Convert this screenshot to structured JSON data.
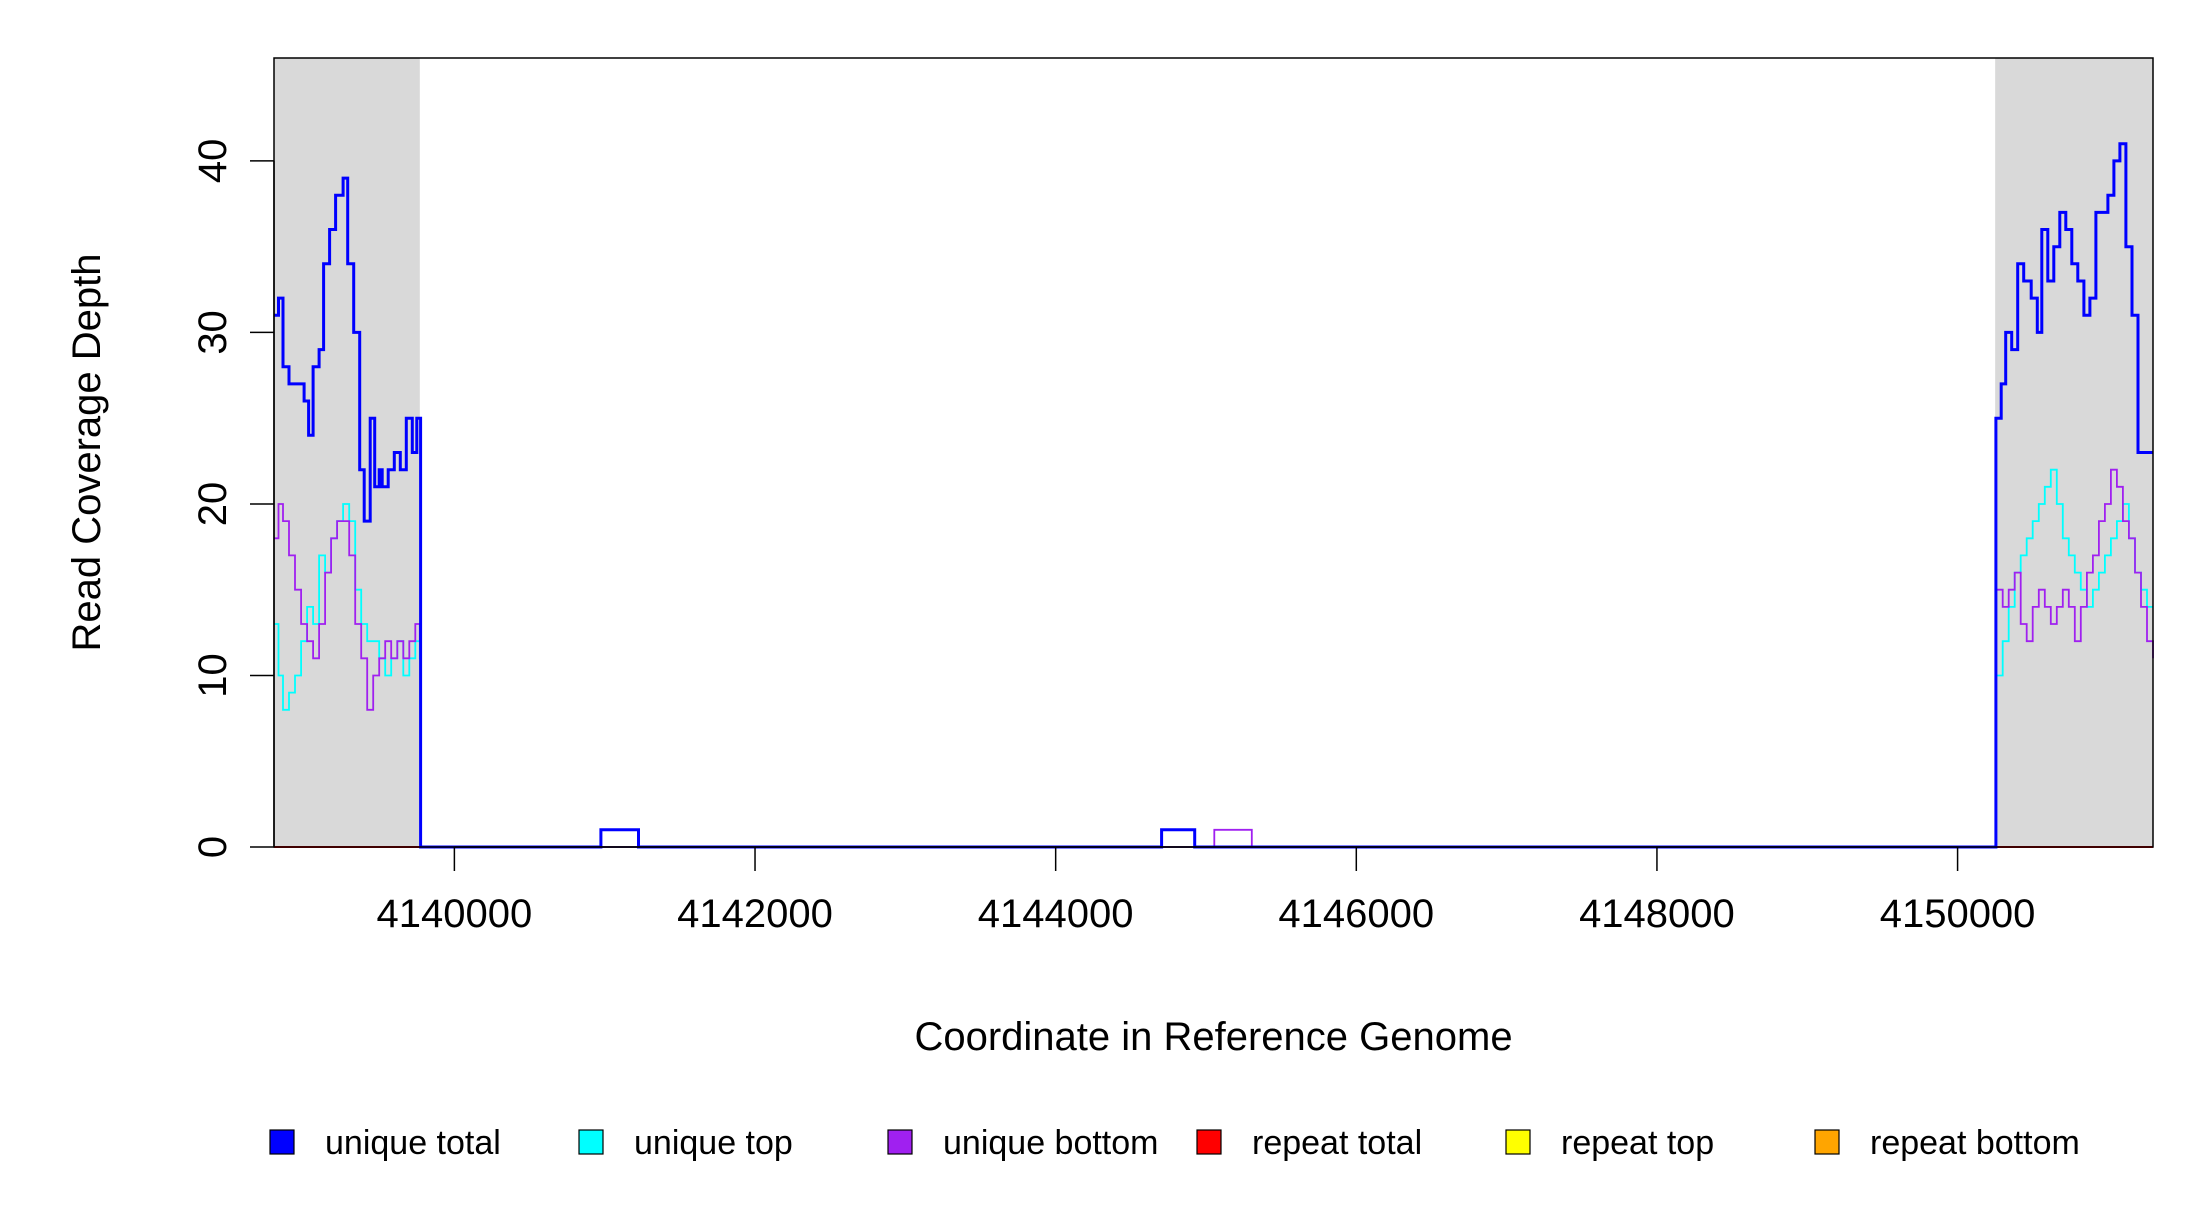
{
  "chart_data": {
    "type": "line",
    "title": "",
    "xlabel": "Coordinate in Reference Genome",
    "ylabel": "Read Coverage Depth",
    "xlim": [
      4138800,
      4151300
    ],
    "ylim": [
      0,
      46
    ],
    "x_ticks": [
      4140000,
      4142000,
      4144000,
      4146000,
      4148000,
      4150000
    ],
    "x_tick_labels": [
      "4140000",
      "4142000",
      "4144000",
      "4146000",
      "4148000",
      "4150000"
    ],
    "y_ticks": [
      0,
      10,
      20,
      30,
      40
    ],
    "y_tick_labels": [
      "0",
      "10",
      "20",
      "30",
      "40"
    ],
    "grid": false,
    "legend_position": "bottom",
    "shaded_regions": [
      {
        "x0": 4138800,
        "x1": 4139770,
        "color": "#d9d9d9"
      },
      {
        "x0": 4150250,
        "x1": 4151300,
        "color": "#d9d9d9"
      }
    ],
    "legend": [
      {
        "label": "unique total",
        "color": "#0000ff"
      },
      {
        "label": "unique top",
        "color": "#00ffff"
      },
      {
        "label": "unique bottom",
        "color": "#a020f0"
      },
      {
        "label": "repeat total",
        "color": "#ff0000"
      },
      {
        "label": "repeat top",
        "color": "#ffff00"
      },
      {
        "label": "repeat bottom",
        "color": "#ffa500"
      }
    ],
    "series": [
      {
        "name": "unique total",
        "color": "#0000ff",
        "x": [
          4138800,
          4138830,
          4138860,
          4138900,
          4138950,
          4139000,
          4139030,
          4139060,
          4139100,
          4139130,
          4139170,
          4139210,
          4139260,
          4139290,
          4139330,
          4139370,
          4139400,
          4139440,
          4139470,
          4139500,
          4139520,
          4139560,
          4139600,
          4139640,
          4139680,
          4139720,
          4139750,
          4139770,
          4139775,
          4140970,
          4140975,
          4141220,
          4141225,
          4144700,
          4144705,
          4144920,
          4144925,
          4150250,
          4150255,
          4150290,
          4150320,
          4150360,
          4150400,
          4150440,
          4150490,
          4150530,
          4150560,
          4150600,
          4150640,
          4150680,
          4150720,
          4150760,
          4150800,
          4150840,
          4150880,
          4150920,
          4150960,
          4151000,
          4151040,
          4151080,
          4151120,
          4151160,
          4151200,
          4151230,
          4151260,
          4151280,
          4151300
        ],
        "y": [
          31,
          32,
          28,
          27,
          27,
          26,
          24,
          28,
          29,
          34,
          36,
          38,
          39,
          34,
          30,
          22,
          19,
          25,
          21,
          22,
          21,
          22,
          23,
          22,
          25,
          23,
          25,
          25,
          0,
          0,
          1,
          1,
          0,
          0,
          1,
          1,
          0,
          0,
          25,
          27,
          30,
          29,
          34,
          33,
          32,
          30,
          36,
          33,
          35,
          37,
          36,
          34,
          33,
          31,
          32,
          37,
          37,
          38,
          40,
          41,
          35,
          31,
          23,
          23,
          23,
          23,
          23
        ]
      },
      {
        "name": "unique top",
        "color": "#00ffff",
        "x": [
          4138800,
          4138830,
          4138860,
          4138900,
          4138940,
          4138980,
          4139020,
          4139060,
          4139100,
          4139140,
          4139180,
          4139220,
          4139260,
          4139300,
          4139340,
          4139380,
          4139420,
          4139460,
          4139500,
          4139540,
          4139580,
          4139620,
          4139660,
          4139700,
          4139740,
          4139770,
          4139775,
          4150250,
          4150255,
          4150300,
          4150340,
          4150380,
          4150420,
          4150460,
          4150500,
          4150540,
          4150580,
          4150620,
          4150660,
          4150700,
          4150740,
          4150780,
          4150820,
          4150860,
          4150900,
          4150940,
          4150980,
          4151020,
          4151060,
          4151100,
          4151140,
          4151180,
          4151220,
          4151260,
          4151300
        ],
        "y": [
          13,
          10,
          8,
          9,
          10,
          12,
          14,
          13,
          17,
          16,
          18,
          19,
          20,
          19,
          15,
          13,
          12,
          12,
          11,
          10,
          11,
          12,
          10,
          11,
          12,
          11,
          0,
          0,
          10,
          12,
          14,
          16,
          17,
          18,
          19,
          20,
          21,
          22,
          20,
          18,
          17,
          16,
          15,
          14,
          15,
          16,
          17,
          18,
          19,
          20,
          18,
          16,
          15,
          14,
          14
        ]
      },
      {
        "name": "unique bottom",
        "color": "#a020f0",
        "x": [
          4138800,
          4138830,
          4138860,
          4138900,
          4138940,
          4138980,
          4139020,
          4139060,
          4139100,
          4139140,
          4139180,
          4139220,
          4139260,
          4139300,
          4139340,
          4139380,
          4139420,
          4139460,
          4139500,
          4139540,
          4139580,
          4139620,
          4139660,
          4139700,
          4139740,
          4139770,
          4139775,
          4145050,
          4145055,
          4145300,
          4145305,
          4150250,
          4150255,
          4150300,
          4150340,
          4150380,
          4150420,
          4150460,
          4150500,
          4150540,
          4150580,
          4150620,
          4150660,
          4150700,
          4150740,
          4150780,
          4150820,
          4150860,
          4150900,
          4150940,
          4150980,
          4151020,
          4151060,
          4151100,
          4151140,
          4151180,
          4151220,
          4151260,
          4151300
        ],
        "y": [
          18,
          20,
          19,
          17,
          15,
          13,
          12,
          11,
          13,
          16,
          18,
          19,
          19,
          17,
          13,
          11,
          8,
          10,
          11,
          12,
          11,
          12,
          11,
          12,
          13,
          12,
          0,
          0,
          1,
          1,
          0,
          0,
          15,
          14,
          15,
          16,
          13,
          12,
          14,
          15,
          14,
          13,
          14,
          15,
          14,
          12,
          14,
          16,
          17,
          19,
          20,
          22,
          21,
          19,
          18,
          16,
          14,
          12,
          11
        ]
      },
      {
        "name": "repeat total",
        "color": "#ff0000",
        "x": [
          4138800,
          4151300
        ],
        "y": [
          0,
          0
        ]
      },
      {
        "name": "repeat top",
        "color": "#ffff00",
        "x": [
          4138800,
          4151300
        ],
        "y": [
          0,
          0
        ]
      },
      {
        "name": "repeat bottom",
        "color": "#ffa500",
        "x": [
          4138800,
          4151300
        ],
        "y": [
          0,
          0
        ]
      }
    ]
  }
}
